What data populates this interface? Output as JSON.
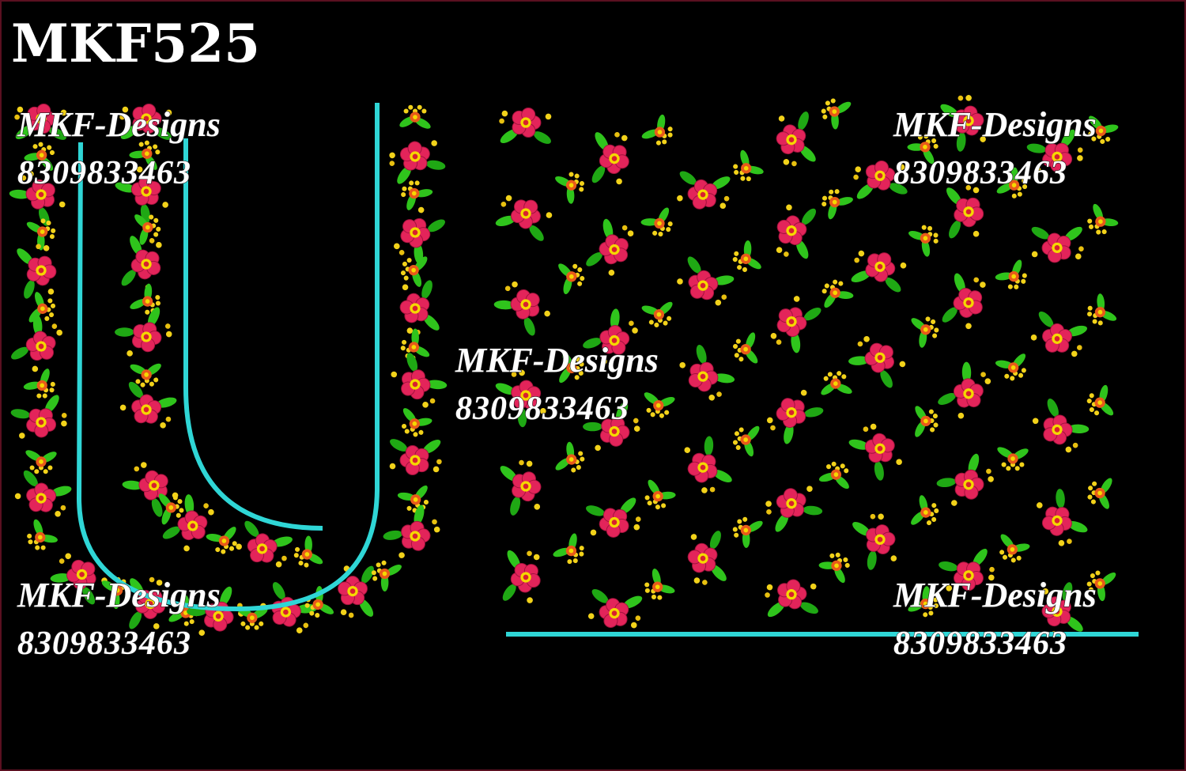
{
  "title": "MKF525",
  "watermarks": [
    {
      "brand": "MKF-Designs",
      "phone": "8309833463"
    },
    {
      "brand": "MKF-Designs",
      "phone": "8309833463"
    },
    {
      "brand": "MKF-Designs",
      "phone": "8309833463"
    },
    {
      "brand": "MKF-Designs",
      "phone": "8309833463"
    },
    {
      "brand": "MKF-Designs",
      "phone": "8309833463"
    }
  ]
}
